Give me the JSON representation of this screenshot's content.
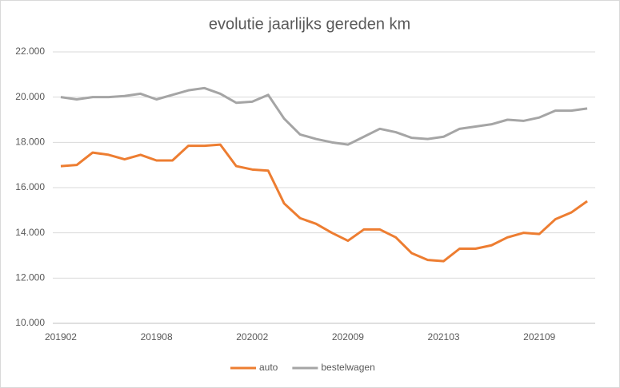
{
  "chart_data": {
    "type": "line",
    "title": "evolutie jaarlijks gereden km",
    "categories": [
      "201902",
      null,
      null,
      null,
      null,
      null,
      "201908",
      null,
      null,
      null,
      null,
      null,
      "202002",
      null,
      null,
      null,
      null,
      null,
      "202009",
      null,
      null,
      null,
      null,
      null,
      "202103",
      null,
      null,
      null,
      null,
      null,
      "202109",
      null,
      null,
      null
    ],
    "series": [
      {
        "name": "auto",
        "color": "#ed7d31",
        "values": [
          16950,
          17000,
          17550,
          17450,
          17250,
          17450,
          17200,
          17200,
          17850,
          17850,
          17900,
          16950,
          16800,
          16750,
          15300,
          14650,
          14400,
          14000,
          13650,
          14150,
          14150,
          13800,
          13100,
          12800,
          12750,
          13300,
          13300,
          13450,
          13800,
          14000,
          13950,
          14600,
          14900,
          15400
        ]
      },
      {
        "name": "bestelwagen",
        "color": "#a5a5a5",
        "values": [
          20000,
          19900,
          20000,
          20000,
          20050,
          20150,
          19900,
          20100,
          20300,
          20400,
          20150,
          19750,
          19800,
          20100,
          19050,
          18350,
          18150,
          18000,
          17900,
          18250,
          18600,
          18450,
          18200,
          18150,
          18250,
          18600,
          18700,
          18800,
          19000,
          18950,
          19100,
          19400,
          19400,
          19500
        ]
      }
    ],
    "ylim": [
      10000,
      22000
    ],
    "yticks": [
      {
        "value": 10000,
        "label": "10.000"
      },
      {
        "value": 12000,
        "label": "12.000"
      },
      {
        "value": 14000,
        "label": "14.000"
      },
      {
        "value": 16000,
        "label": "16.000"
      },
      {
        "value": 18000,
        "label": "18.000"
      },
      {
        "value": 20000,
        "label": "20.000"
      },
      {
        "value": 22000,
        "label": "22.000"
      }
    ],
    "grid": true,
    "legend": "bottom"
  }
}
